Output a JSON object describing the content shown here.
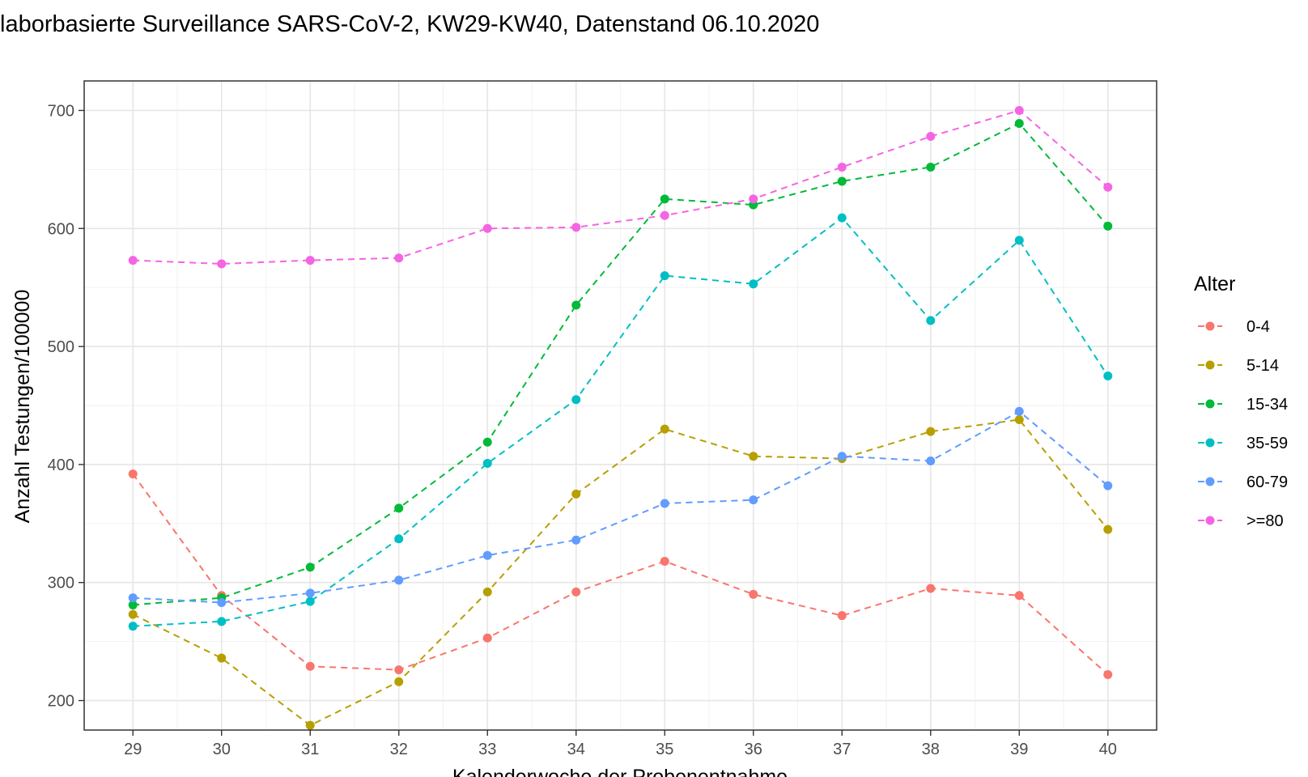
{
  "page_title": "laborbasierte Surveillance SARS-CoV-2, KW29-KW40, Datenstand 06.10.2020",
  "chart_data": {
    "type": "line",
    "xlabel": "Kalenderwoche der Probenentnahme",
    "ylabel": "Anzahl Testungen/100000",
    "x": [
      29,
      30,
      31,
      32,
      33,
      34,
      35,
      36,
      37,
      38,
      39,
      40
    ],
    "xlim": [
      28.45,
      40.55
    ],
    "ylim": [
      175,
      725
    ],
    "yticks": [
      200,
      300,
      400,
      500,
      600,
      700
    ],
    "line_style": "dashed",
    "markers": "circle",
    "grid": true,
    "legend": {
      "title": "Alter",
      "position": "right"
    },
    "series": [
      {
        "name": "0-4",
        "color": "#F8766D",
        "values": [
          392,
          289,
          229,
          226,
          253,
          292,
          318,
          290,
          272,
          295,
          289,
          222
        ]
      },
      {
        "name": "5-14",
        "color": "#B79F00",
        "values": [
          273,
          236,
          179,
          216,
          292,
          375,
          430,
          407,
          405,
          428,
          438,
          345
        ]
      },
      {
        "name": "15-34",
        "color": "#00BA38",
        "values": [
          281,
          287,
          313,
          363,
          419,
          535,
          625,
          620,
          640,
          652,
          689,
          602
        ]
      },
      {
        "name": "35-59",
        "color": "#00BFC4",
        "values": [
          263,
          267,
          284,
          337,
          401,
          455,
          560,
          553,
          609,
          522,
          590,
          475
        ]
      },
      {
        "name": "60-79",
        "color": "#619CFF",
        "values": [
          287,
          283,
          291,
          302,
          323,
          336,
          367,
          370,
          407,
          403,
          445,
          382
        ]
      },
      {
        "name": ">=80",
        "color": "#F564E3",
        "values": [
          573,
          570,
          573,
          575,
          600,
          601,
          611,
          625,
          652,
          678,
          700,
          635
        ]
      }
    ]
  }
}
